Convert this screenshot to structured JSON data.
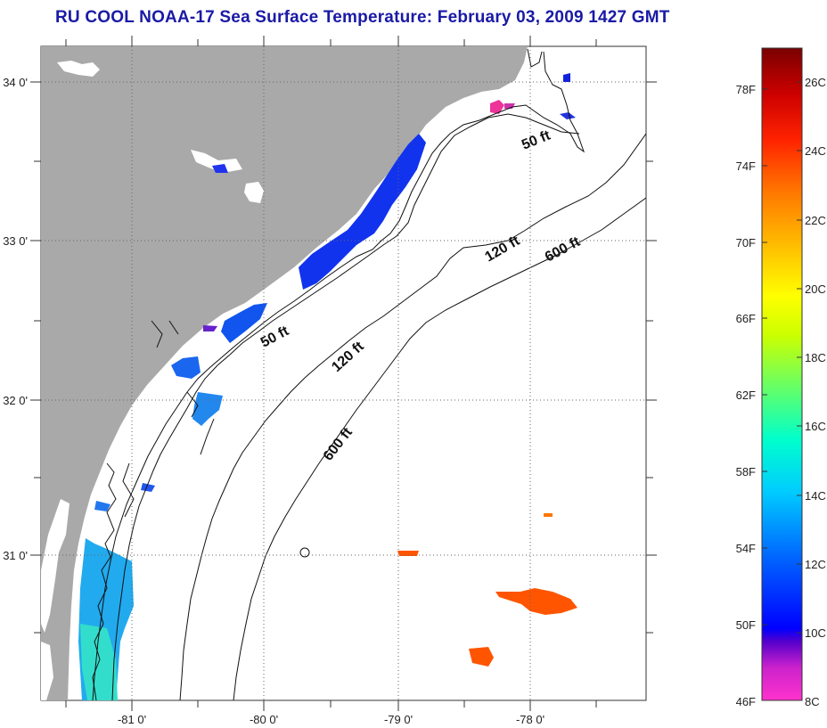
{
  "title": "RU COOL  NOAA-17  Sea Surface Temperature:  February 03, 2009 1427 GMT",
  "map": {
    "lat_labels": [
      "34 0'",
      "33 0'",
      "32 0'",
      "31 0'"
    ],
    "lon_labels": [
      "-81 0'",
      "-80 0'",
      "-79 0'",
      "-78 0'"
    ],
    "contours": [
      "50 ft",
      "50 ft",
      "120 ft",
      "120 ft",
      "600 ft",
      "600 ft"
    ],
    "land_color": "#a9a9a9",
    "ocean_color": "#ffffff"
  },
  "colorbar": {
    "fahrenheit_labels": [
      "78F",
      "74F",
      "70F",
      "66F",
      "62F",
      "58F",
      "54F",
      "50F",
      "46F"
    ],
    "celsius_labels": [
      "26C",
      "24C",
      "22C",
      "20C",
      "18C",
      "16C",
      "14C",
      "12C",
      "10C",
      "8C"
    ],
    "range_celsius": [
      8,
      27
    ],
    "colors": [
      "#ff33cc",
      "#cc22cc",
      "#6600cc",
      "#0000ff",
      "#0066ff",
      "#00ccff",
      "#00ffcc",
      "#66ff66",
      "#ccff00",
      "#ffff00",
      "#ffcc00",
      "#ff8800",
      "#ff3300",
      "#dd0000",
      "#880000"
    ]
  }
}
